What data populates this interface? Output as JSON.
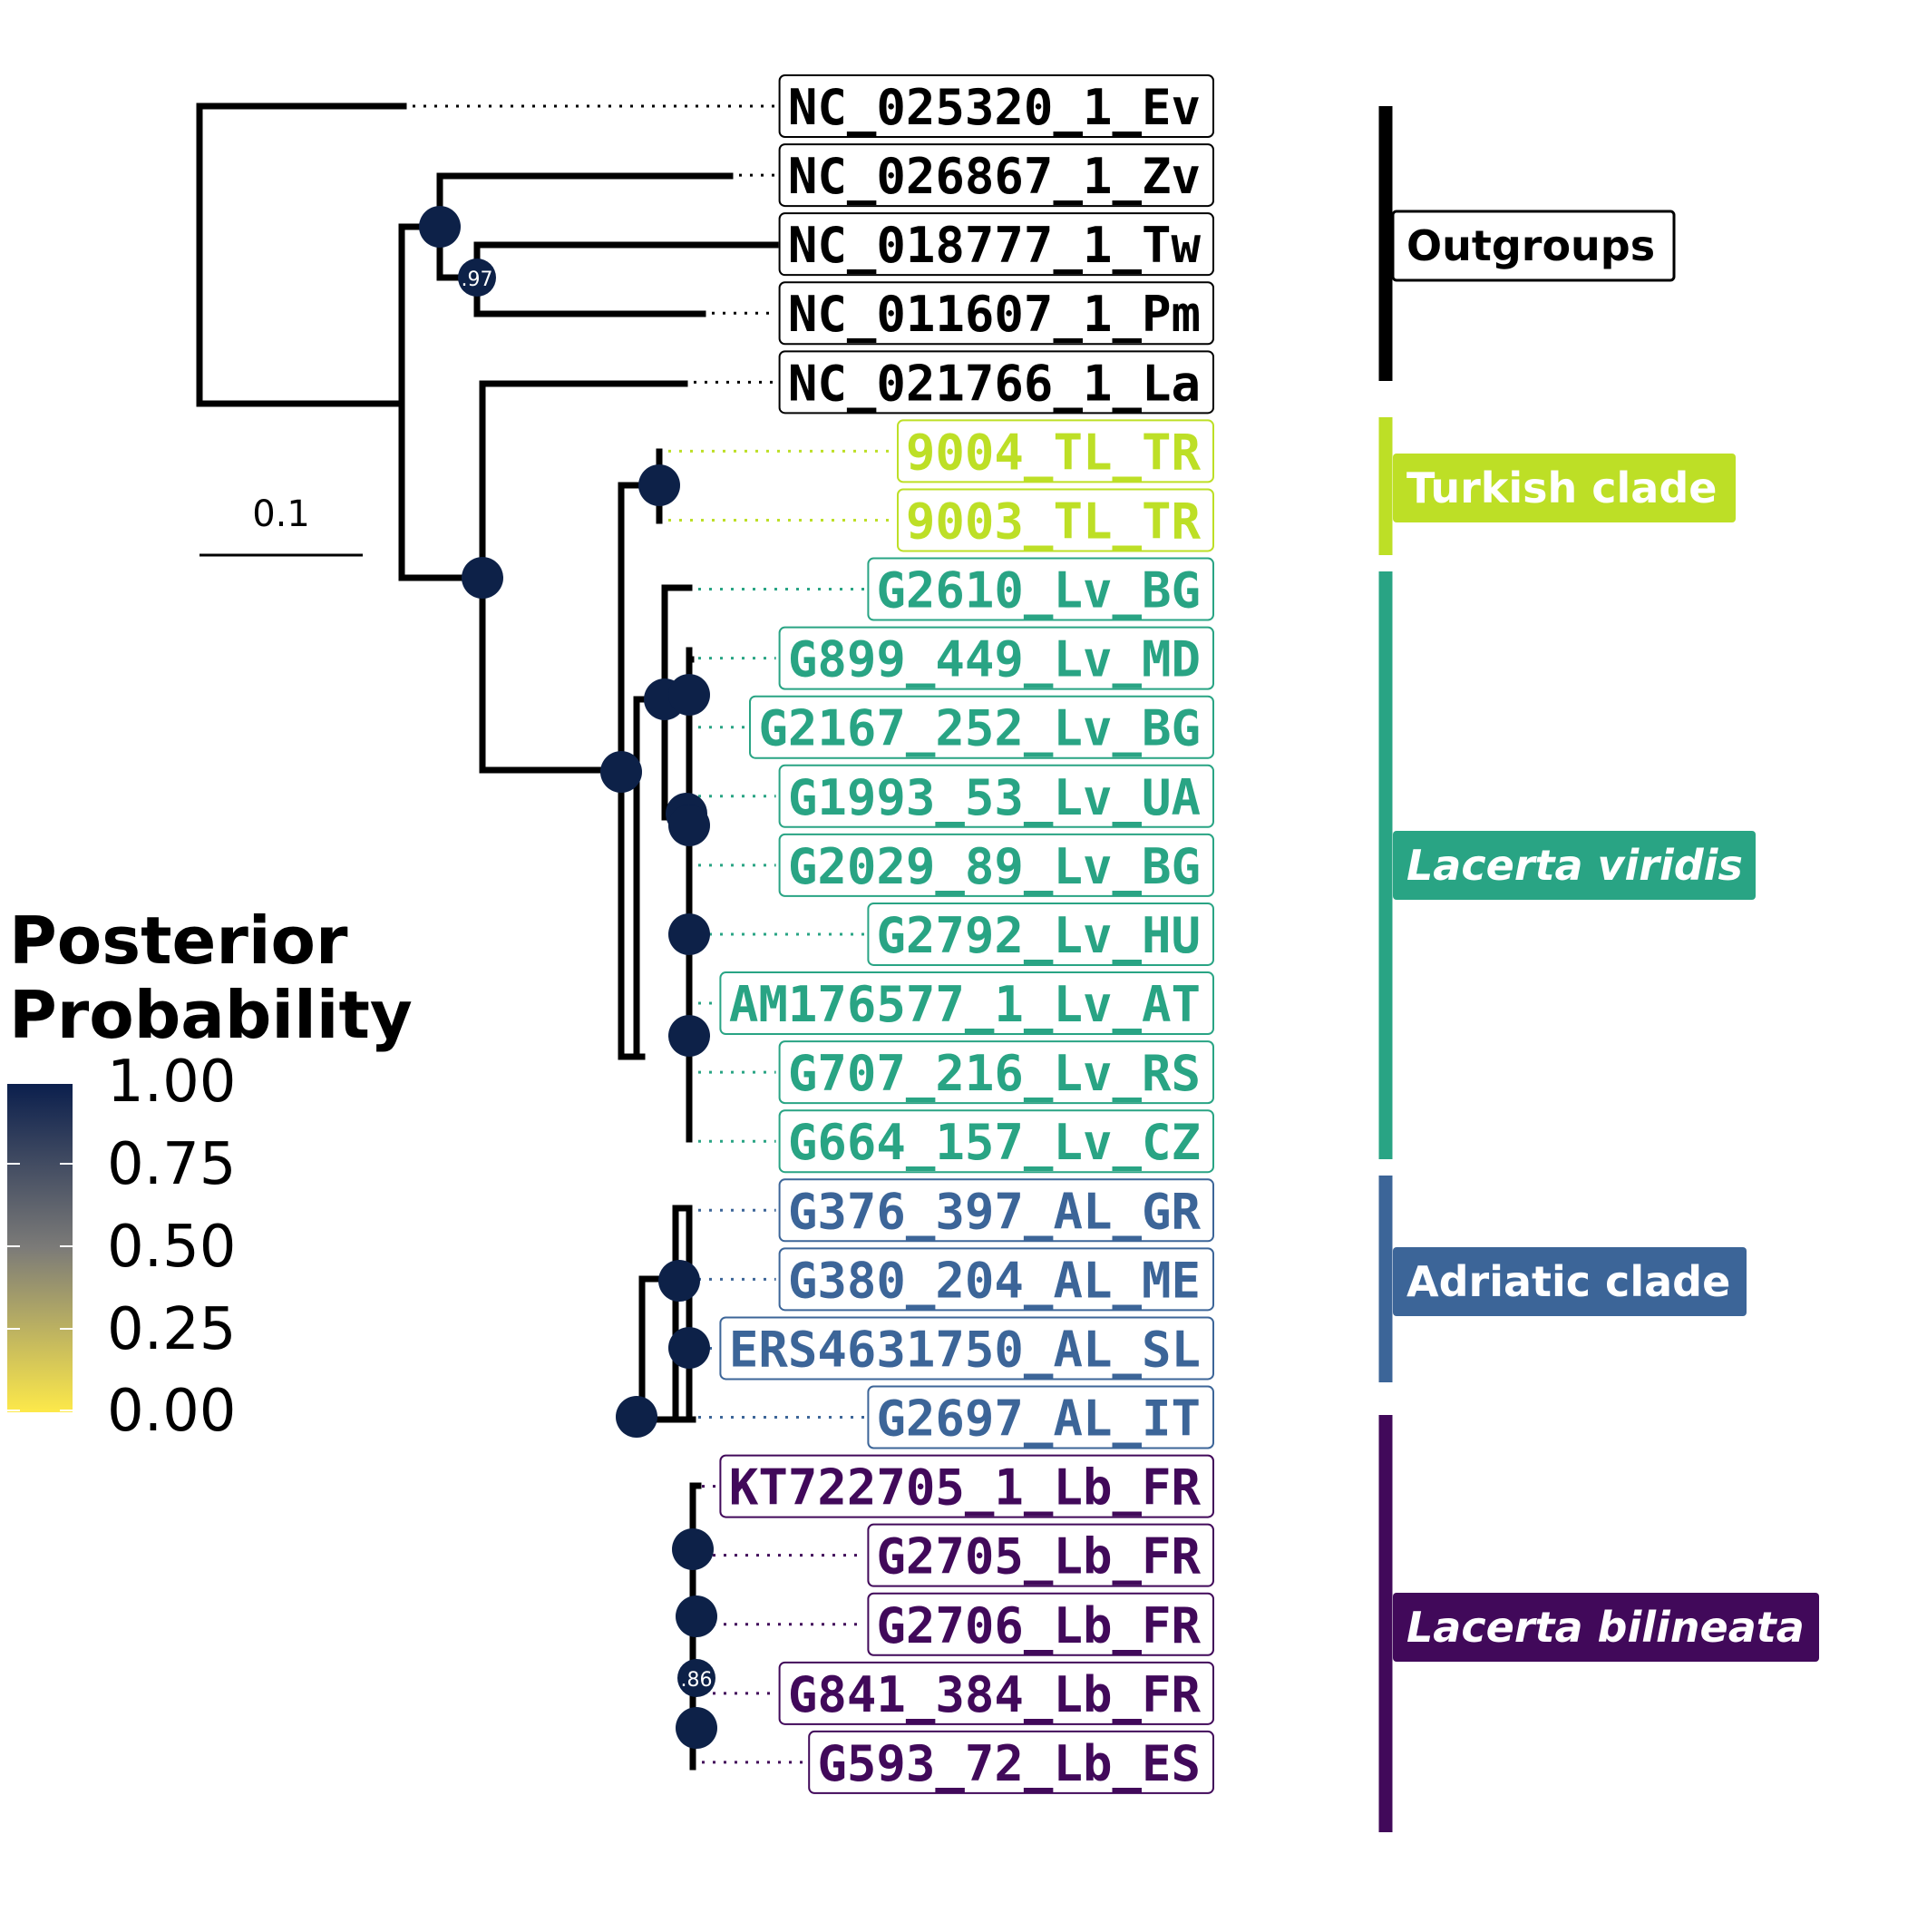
{
  "scale_bar": {
    "label": "0.1"
  },
  "legend": {
    "title_line1": "Posterior",
    "title_line2": "Probability",
    "ticks": [
      "1.00",
      "0.75",
      "0.50",
      "0.25",
      "0.00"
    ],
    "gradient_top": "#0b1f4d",
    "gradient_mid": "#7c7b78",
    "gradient_bottom": "#fde94a"
  },
  "colors": {
    "outgroups": "#000000",
    "turkish": "#bddf26",
    "viridis": "#29a484",
    "adriatic": "#3c6598",
    "bilineata": "#41095a",
    "node": "#0d2148"
  },
  "tips": [
    {
      "label": "NC_025320_1_Ev",
      "group": "outgroups"
    },
    {
      "label": "NC_026867_1_Zv",
      "group": "outgroups"
    },
    {
      "label": "NC_018777_1_Tw",
      "group": "outgroups"
    },
    {
      "label": "NC_011607_1_Pm",
      "group": "outgroups"
    },
    {
      "label": "NC_021766_1_La",
      "group": "outgroups"
    },
    {
      "label": "9004_TL_TR",
      "group": "turkish"
    },
    {
      "label": "9003_TL_TR",
      "group": "turkish"
    },
    {
      "label": "G2610_Lv_BG",
      "group": "viridis"
    },
    {
      "label": "G899_449_Lv_MD",
      "group": "viridis"
    },
    {
      "label": "G2167_252_Lv_BG",
      "group": "viridis"
    },
    {
      "label": "G1993_53_Lv_UA",
      "group": "viridis"
    },
    {
      "label": "G2029_89_Lv_BG",
      "group": "viridis"
    },
    {
      "label": "G2792_Lv_HU",
      "group": "viridis"
    },
    {
      "label": "AM176577_1_Lv_AT",
      "group": "viridis"
    },
    {
      "label": "G707_216_Lv_RS",
      "group": "viridis"
    },
    {
      "label": "G664_157_Lv_CZ",
      "group": "viridis"
    },
    {
      "label": "G376_397_AL_GR",
      "group": "adriatic"
    },
    {
      "label": "G380_204_AL_ME",
      "group": "adriatic"
    },
    {
      "label": "ERS4631750_AL_SL",
      "group": "adriatic"
    },
    {
      "label": "G2697_AL_IT",
      "group": "adriatic"
    },
    {
      "label": "KT722705_1_Lb_FR",
      "group": "bilineata"
    },
    {
      "label": "G2705_Lb_FR",
      "group": "bilineata"
    },
    {
      "label": "G2706_Lb_FR",
      "group": "bilineata"
    },
    {
      "label": "G841_384_Lb_FR",
      "group": "bilineata"
    },
    {
      "label": "G593_72_Lb_ES",
      "group": "bilineata"
    }
  ],
  "clades": [
    {
      "label": "Outgroups",
      "group": "outgroups",
      "italic": false
    },
    {
      "label": "Turkish clade",
      "group": "turkish",
      "italic": false
    },
    {
      "label": "Lacerta viridis",
      "group": "viridis",
      "italic": true
    },
    {
      "label": "Adriatic clade",
      "group": "adriatic",
      "italic": false
    },
    {
      "label": "Lacerta bilineata",
      "group": "bilineata",
      "italic": true
    }
  ],
  "support_labels": [
    ".97",
    ".86"
  ]
}
